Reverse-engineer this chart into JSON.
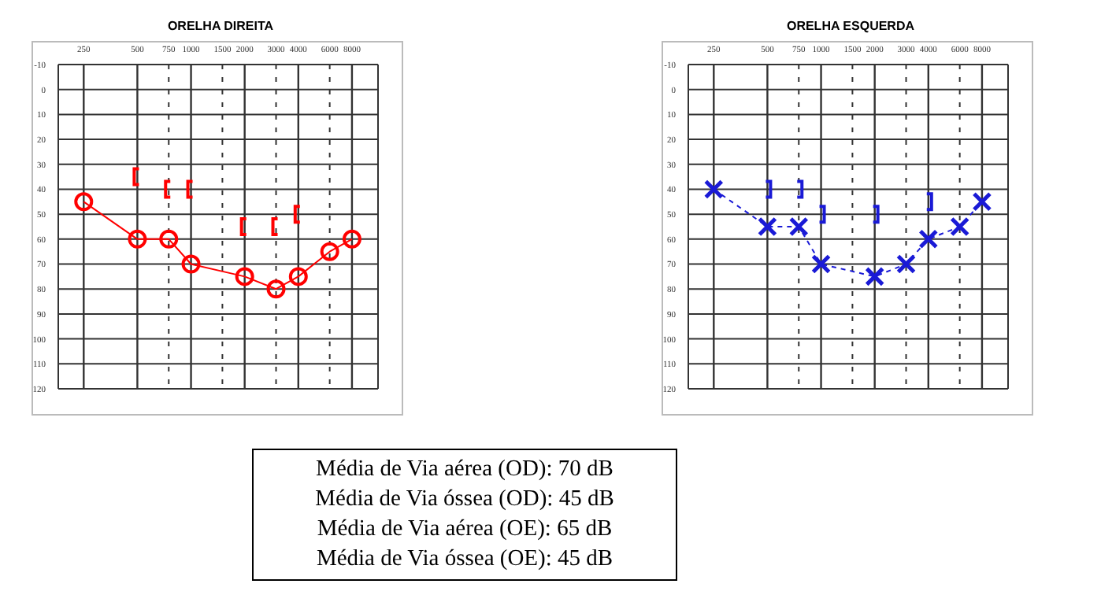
{
  "chart_data": [
    {
      "type": "line",
      "title": "ORELHA DIREITA",
      "log": "x",
      "xlim": [
        180,
        11200
      ],
      "xticks": [
        250,
        500,
        750,
        1000,
        1500,
        2000,
        3000,
        4000,
        6000,
        8000
      ],
      "ylim": [
        120,
        -10
      ],
      "yticks": [
        -10,
        0,
        10,
        20,
        30,
        40,
        50,
        60,
        70,
        80,
        90,
        100,
        110,
        120
      ],
      "grid": true,
      "series": [
        {
          "type": "line",
          "color": "#ff0000",
          "marker": "circle",
          "line_style": "solid",
          "x": [
            250,
            500,
            750,
            1000,
            2000,
            3000,
            4000,
            6000,
            8000
          ],
          "values": [
            45,
            60,
            60,
            70,
            75,
            80,
            75,
            65,
            60
          ]
        },
        {
          "type": "scatter",
          "color": "#ff0000",
          "x": [
            500,
            750,
            1000,
            2000,
            3000,
            4000
          ],
          "values": [
            35,
            40,
            40,
            55,
            55,
            50
          ]
        }
      ]
    },
    {
      "type": "line",
      "title": "ORELHA ESQUERDA",
      "log": "x",
      "xlim": [
        180,
        11200
      ],
      "xticks": [
        250,
        500,
        750,
        1000,
        1500,
        2000,
        3000,
        4000,
        6000,
        8000
      ],
      "ylim": [
        120,
        -10
      ],
      "yticks": [
        -10,
        0,
        10,
        20,
        30,
        40,
        50,
        60,
        70,
        80,
        90,
        100,
        110,
        120
      ],
      "grid": true,
      "series": [
        {
          "type": "line",
          "color": "#1a1ad6",
          "marker": "cross",
          "line_style": "dashed",
          "x": [
            250,
            500,
            750,
            1000,
            2000,
            3000,
            4000,
            6000,
            8000
          ],
          "values": [
            40,
            55,
            55,
            70,
            75,
            70,
            60,
            55,
            45
          ]
        },
        {
          "type": "scatter",
          "color": "#1a1ad6",
          "x": [
            500,
            750,
            1000,
            2000,
            4000
          ],
          "values": [
            40,
            40,
            50,
            50,
            45
          ]
        }
      ]
    },
    {
      "type": "other",
      "annotations": [
        "Média de Via aérea (OD): 70 dB",
        "Média de Via óssea (OD): 45 dB",
        "Média de Via aérea (OE): 65 dB",
        "Média de Via óssea (OE): 45 dB"
      ]
    }
  ]
}
